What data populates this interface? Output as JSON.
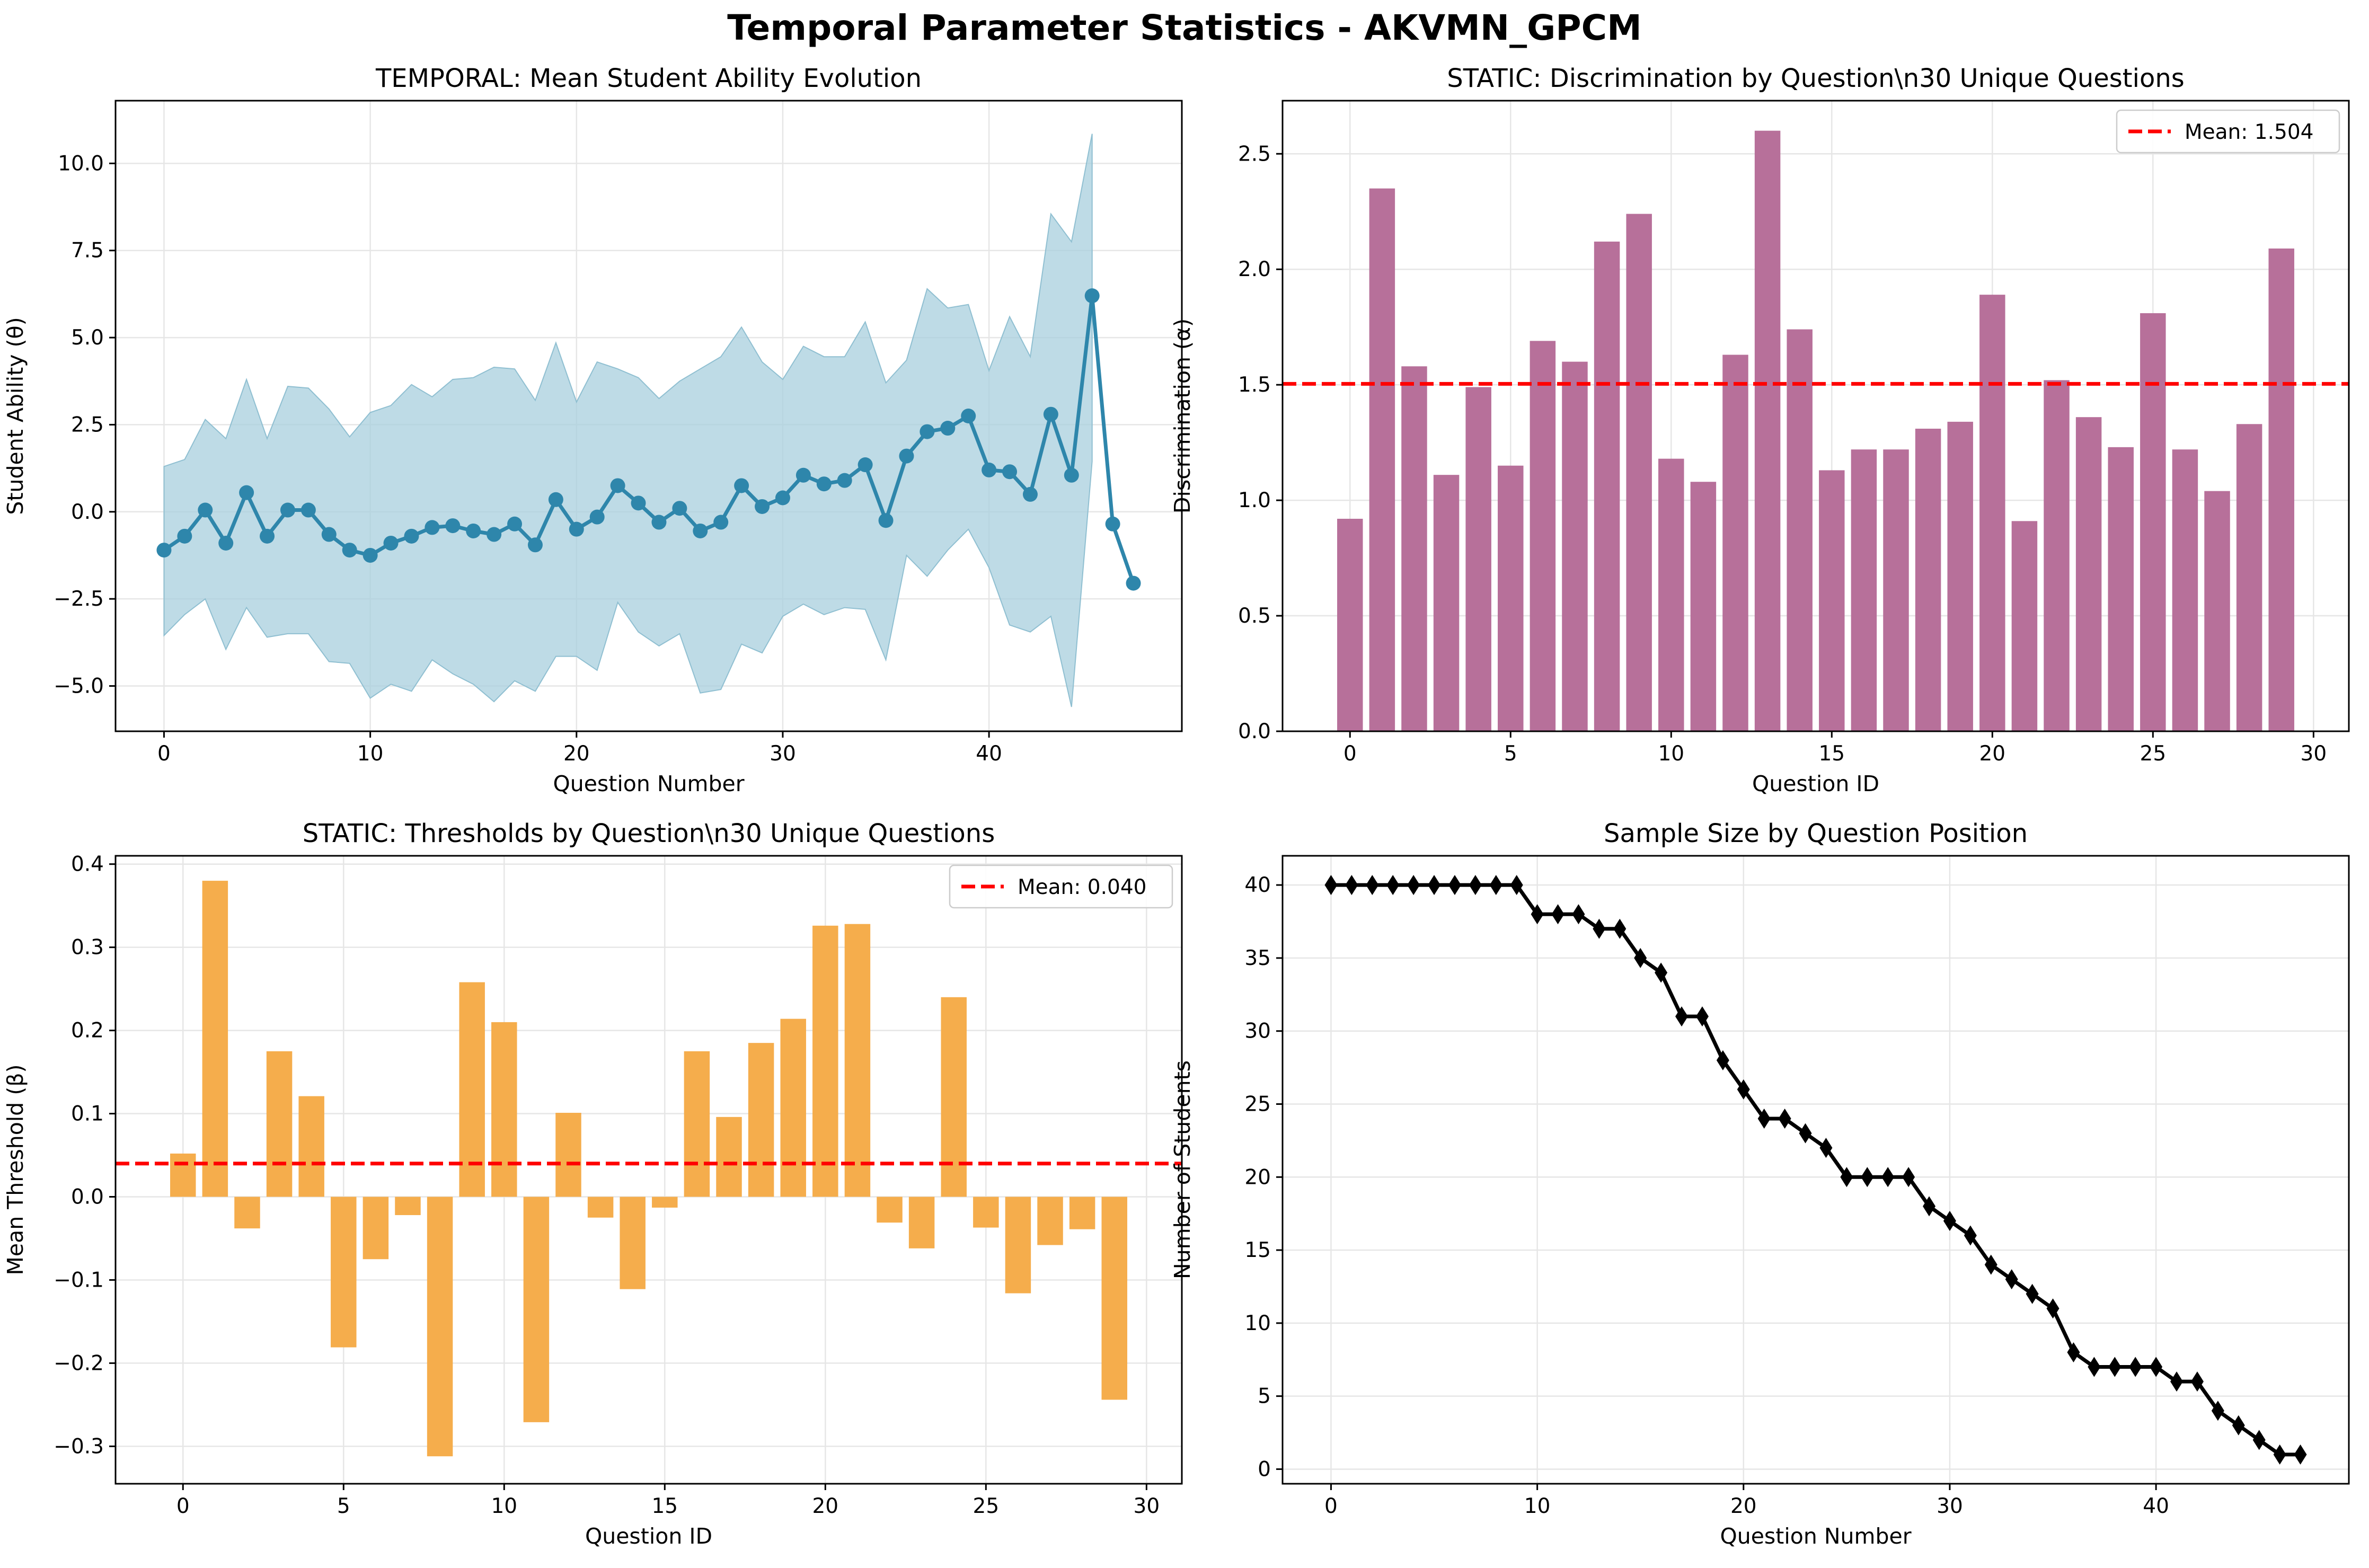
{
  "figure": {
    "title": "Temporal Parameter Statistics - AKVMN_GPCM"
  },
  "chart_data": [
    {
      "type": "line",
      "title": "TEMPORAL: Mean Student Ability Evolution",
      "xlabel": "Question Number",
      "ylabel": "Student Ability (θ)",
      "xlim": [
        -2.35,
        49.35
      ],
      "ylim": [
        -6.3,
        11.8
      ],
      "xticks": [
        0,
        10,
        20,
        30,
        40
      ],
      "yticks": [
        -5.0,
        -2.5,
        0.0,
        2.5,
        5.0,
        7.5,
        10.0
      ],
      "ytick_labels": [
        "−5.0",
        "−2.5",
        "0.0",
        "2.5",
        "5.0",
        "7.5",
        "10.0"
      ],
      "grid": true,
      "colors": {
        "line": "#2e86ab",
        "band": "#a8cfdd"
      },
      "x": [
        0,
        1,
        2,
        3,
        4,
        5,
        6,
        7,
        8,
        9,
        10,
        11,
        12,
        13,
        14,
        15,
        16,
        17,
        18,
        19,
        20,
        21,
        22,
        23,
        24,
        25,
        26,
        27,
        28,
        29,
        30,
        31,
        32,
        33,
        34,
        35,
        36,
        37,
        38,
        39,
        40,
        41,
        42,
        43,
        44,
        45,
        46,
        47
      ],
      "series": [
        {
          "name": "mean",
          "values": [
            -1.1,
            -0.7,
            0.05,
            -0.9,
            0.55,
            -0.7,
            0.05,
            0.05,
            -0.65,
            -1.1,
            -1.25,
            -0.9,
            -0.7,
            -0.45,
            -0.4,
            -0.55,
            -0.65,
            -0.35,
            -0.95,
            0.35,
            -0.5,
            -0.15,
            0.75,
            0.25,
            -0.3,
            0.1,
            -0.55,
            -0.3,
            0.75,
            0.15,
            0.4,
            1.05,
            0.8,
            0.9,
            1.35,
            -0.25,
            1.6,
            2.3,
            2.4,
            2.75,
            1.2,
            1.15,
            0.5,
            2.8,
            1.05,
            6.2,
            -0.35,
            -2.05
          ]
        },
        {
          "name": "upper",
          "values": [
            1.3,
            1.5,
            2.65,
            2.1,
            3.8,
            2.1,
            3.6,
            3.55,
            2.95,
            2.15,
            2.85,
            3.05,
            3.65,
            3.3,
            3.8,
            3.85,
            4.15,
            4.1,
            3.2,
            4.85,
            3.15,
            4.3,
            4.1,
            3.85,
            3.25,
            3.75,
            4.1,
            4.45,
            5.3,
            4.3,
            3.8,
            4.75,
            4.45,
            4.45,
            5.45,
            3.7,
            4.35,
            6.4,
            5.85,
            5.95,
            4.05,
            5.6,
            4.45,
            8.55,
            7.75,
            10.85,
            null,
            null
          ]
        },
        {
          "name": "lower",
          "values": [
            -3.55,
            -2.95,
            -2.5,
            -3.95,
            -2.75,
            -3.6,
            -3.5,
            -3.5,
            -4.3,
            -4.35,
            -5.35,
            -4.95,
            -5.15,
            -4.25,
            -4.65,
            -4.95,
            -5.45,
            -4.85,
            -5.15,
            -4.15,
            -4.15,
            -4.55,
            -2.6,
            -3.45,
            -3.85,
            -3.5,
            -5.2,
            -5.1,
            -3.8,
            -4.05,
            -3.0,
            -2.65,
            -2.95,
            -2.75,
            -2.8,
            -4.25,
            -1.25,
            -1.85,
            -1.1,
            -0.5,
            -1.6,
            -3.25,
            -3.45,
            -3.0,
            -5.6,
            1.45,
            null,
            null
          ]
        }
      ]
    },
    {
      "type": "bar",
      "title": "STATIC: Discrimination by Question\\n30 Unique Questions",
      "xlabel": "Question ID",
      "ylabel": "Discrimination (α)",
      "xlim": [
        -2.1,
        31.1
      ],
      "ylim": [
        0,
        2.73
      ],
      "xticks": [
        0,
        5,
        10,
        15,
        20,
        25,
        30
      ],
      "yticks": [
        0.0,
        0.5,
        1.0,
        1.5,
        2.0,
        2.5
      ],
      "ytick_labels": [
        "0.0",
        "0.5",
        "1.0",
        "1.5",
        "2.0",
        "2.5"
      ],
      "grid": true,
      "colors": {
        "bar": "#b7709a",
        "mean": "#ff0000"
      },
      "categories": [
        0,
        1,
        2,
        3,
        4,
        5,
        6,
        7,
        8,
        9,
        10,
        11,
        12,
        13,
        14,
        15,
        16,
        17,
        18,
        19,
        20,
        21,
        22,
        23,
        24,
        25,
        26,
        27,
        28,
        29
      ],
      "values": [
        0.92,
        2.35,
        1.58,
        1.11,
        1.49,
        1.15,
        1.69,
        1.6,
        2.12,
        2.24,
        1.18,
        1.08,
        1.63,
        2.6,
        1.74,
        1.13,
        1.22,
        1.22,
        1.31,
        1.34,
        1.89,
        0.91,
        1.52,
        1.36,
        1.23,
        1.81,
        1.22,
        1.04,
        1.33,
        2.09
      ],
      "mean_value": 1.504,
      "legend": {
        "label": "Mean: 1.504",
        "position": "top-right"
      }
    },
    {
      "type": "bar",
      "title": "STATIC: Thresholds by Question\\n30 Unique Questions",
      "xlabel": "Question ID",
      "ylabel": "Mean Threshold (β)",
      "xlim": [
        -2.1,
        31.1
      ],
      "ylim": [
        -0.345,
        0.41
      ],
      "xticks": [
        0,
        5,
        10,
        15,
        20,
        25,
        30
      ],
      "yticks": [
        -0.3,
        -0.2,
        -0.1,
        0.0,
        0.1,
        0.2,
        0.3,
        0.4
      ],
      "ytick_labels": [
        "−0.3",
        "−0.2",
        "−0.1",
        "0.0",
        "0.1",
        "0.2",
        "0.3",
        "0.4"
      ],
      "grid": true,
      "colors": {
        "bar": "#f5ad4c",
        "mean": "#ff0000"
      },
      "categories": [
        0,
        1,
        2,
        3,
        4,
        5,
        6,
        7,
        8,
        9,
        10,
        11,
        12,
        13,
        14,
        15,
        16,
        17,
        18,
        19,
        20,
        21,
        22,
        23,
        24,
        25,
        26,
        27,
        28,
        29
      ],
      "values": [
        0.052,
        0.38,
        -0.038,
        0.175,
        0.121,
        -0.181,
        -0.075,
        -0.022,
        -0.312,
        0.258,
        0.21,
        -0.271,
        0.101,
        -0.025,
        -0.111,
        -0.013,
        0.175,
        0.096,
        0.185,
        0.214,
        0.326,
        0.328,
        -0.031,
        -0.062,
        0.24,
        -0.037,
        -0.116,
        -0.058,
        -0.039,
        -0.244
      ],
      "mean_value": 0.04,
      "legend": {
        "label": "Mean: 0.040",
        "position": "top-right"
      }
    },
    {
      "type": "line",
      "title": "Sample Size by Question Position",
      "xlabel": "Question Number",
      "ylabel": "Number of Students",
      "xlim": [
        -2.35,
        49.35
      ],
      "ylim": [
        -1.0,
        42.0
      ],
      "xticks": [
        0,
        10,
        20,
        30,
        40
      ],
      "yticks": [
        0,
        5,
        10,
        15,
        20,
        25,
        30,
        35,
        40
      ],
      "ytick_labels": [
        "0",
        "5",
        "10",
        "15",
        "20",
        "25",
        "30",
        "35",
        "40"
      ],
      "grid": true,
      "colors": {
        "line": "#000000"
      },
      "x": [
        0,
        1,
        2,
        3,
        4,
        5,
        6,
        7,
        8,
        9,
        10,
        11,
        12,
        13,
        14,
        15,
        16,
        17,
        18,
        19,
        20,
        21,
        22,
        23,
        24,
        25,
        26,
        27,
        28,
        29,
        30,
        31,
        32,
        33,
        34,
        35,
        36,
        37,
        38,
        39,
        40,
        41,
        42,
        43,
        44,
        45,
        46,
        47
      ],
      "values": [
        40,
        40,
        40,
        40,
        40,
        40,
        40,
        40,
        40,
        40,
        38,
        38,
        38,
        37,
        37,
        35,
        34,
        31,
        31,
        28,
        26,
        24,
        24,
        23,
        22,
        20,
        20,
        20,
        20,
        18,
        17,
        16,
        14,
        13,
        12,
        11,
        8,
        7,
        7,
        7,
        7,
        6,
        6,
        4,
        3,
        2,
        1,
        1
      ]
    }
  ]
}
